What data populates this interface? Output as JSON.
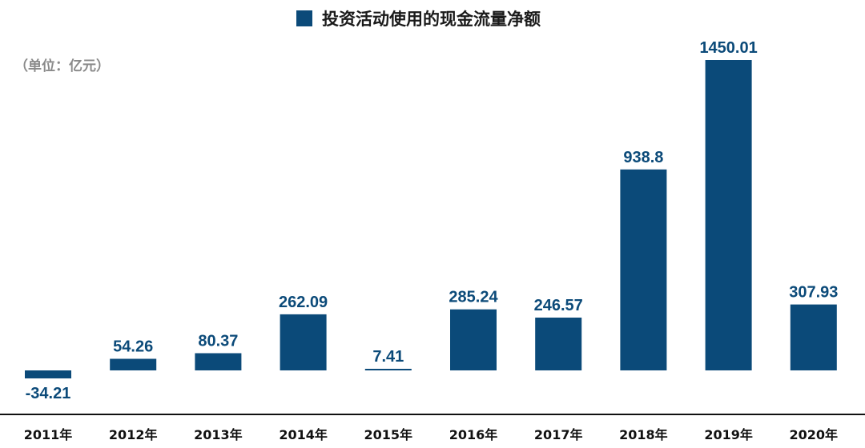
{
  "chart_data": {
    "type": "bar",
    "title": "",
    "legend": [
      "投资活动使用的现金流量净额"
    ],
    "legend_position": "top-center",
    "unit_note": "（单位：亿元）",
    "categories": [
      "2011年",
      "2012年",
      "2013年",
      "2014年",
      "2015年",
      "2016年",
      "2017年",
      "2018年",
      "2019年",
      "2020年"
    ],
    "series": [
      {
        "name": "投资活动使用的现金流量净额",
        "values": [
          -34.21,
          54.26,
          80.37,
          262.09,
          7.41,
          285.24,
          246.57,
          938.8,
          1450.01,
          307.93
        ],
        "labels": [
          "-34.21",
          "54.26",
          "80.37",
          "262.09",
          "7.41",
          "285.24",
          "246.57",
          "938.8",
          "1450.01",
          "307.93"
        ]
      }
    ],
    "ylim": [
      -34.21,
      1450.01
    ],
    "grid": false,
    "xlabel": "",
    "ylabel": "",
    "colors": {
      "bar": "#0b4a79",
      "label": "#0b4a79",
      "axis": "#111111",
      "unit": "#8a8a8a"
    }
  }
}
